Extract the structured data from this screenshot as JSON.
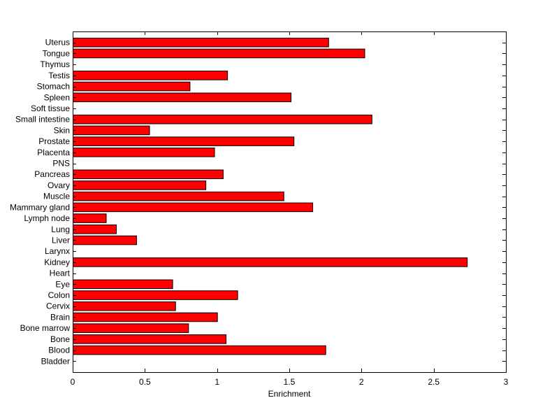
{
  "chart_data": {
    "type": "bar",
    "orientation": "horizontal",
    "xlabel": "Enrichment",
    "ylabel": "",
    "xlim": [
      0,
      3
    ],
    "xticks": [
      0,
      0.5,
      1,
      1.5,
      2,
      2.5,
      3
    ],
    "xtick_labels": [
      "0",
      "0.5",
      "1",
      "1.5",
      "2",
      "2.5",
      "3"
    ],
    "grid": false,
    "legend": "none",
    "bar_color": "#ff0000",
    "bar_edge_color": "#000000",
    "categories": [
      "Uterus",
      "Tongue",
      "Thymus",
      "Testis",
      "Stomach",
      "Spleen",
      "Soft tissue",
      "Small intestine",
      "Skin",
      "Prostate",
      "Placenta",
      "PNS",
      "Pancreas",
      "Ovary",
      "Muscle",
      "Mammary gland",
      "Lymph node",
      "Lung",
      "Liver",
      "Larynx",
      "Kidney",
      "Heart",
      "Eye",
      "Colon",
      "Cervix",
      "Brain",
      "Bone marrow",
      "Bone",
      "Blood",
      "Bladder"
    ],
    "values": [
      1.77,
      2.02,
      0,
      1.07,
      0.81,
      1.51,
      0,
      2.07,
      0.53,
      1.53,
      0.98,
      0,
      1.04,
      0.92,
      1.46,
      1.66,
      0.23,
      0.3,
      0.44,
      0,
      2.73,
      0,
      0.69,
      1.14,
      0.71,
      1.0,
      0.8,
      1.06,
      1.75,
      0
    ]
  }
}
